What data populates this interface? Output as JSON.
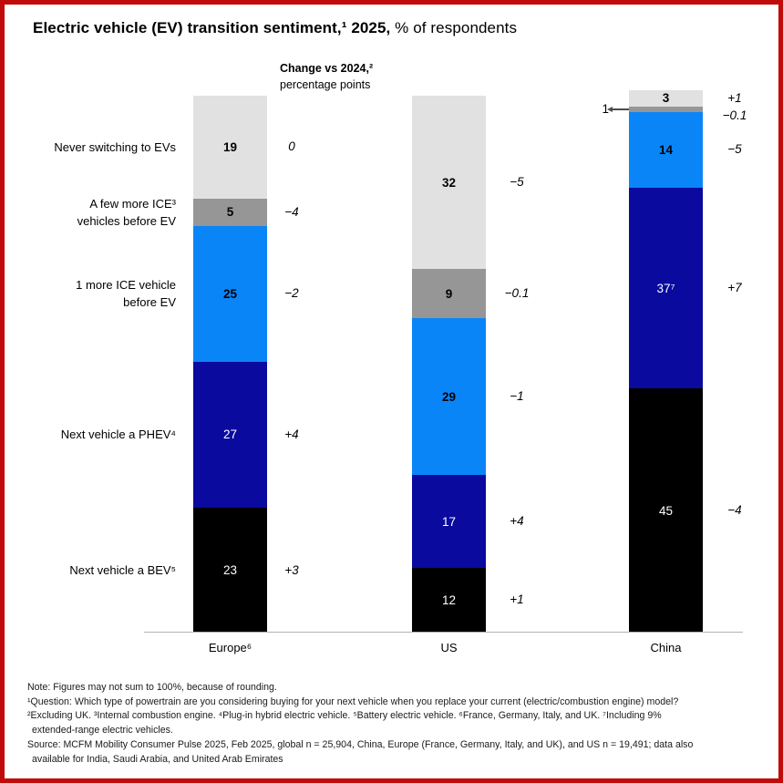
{
  "header": {
    "title_bold": "Electric vehicle (EV) transition sentiment,¹ 2025,",
    "title_regular": " % of respondents"
  },
  "change_header": {
    "bold": "Change vs 2024,²",
    "regular": "percentage points"
  },
  "chart_data": {
    "type": "bar",
    "stacked": true,
    "orientation": "vertical",
    "unit": "% of respondents",
    "legend_position": "left-category-labels",
    "grid": false,
    "ylim": [
      0,
      100
    ],
    "categories": [
      "Never switching to EVs",
      "A few more ICE³\nvehicles before EV",
      "1 more ICE vehicle\nbefore EV",
      "Next vehicle a PHEV⁴",
      "Next vehicle a BEV⁵"
    ],
    "segment_colors": [
      "#e1e1e1",
      "#969696",
      "#0a85f8",
      "#0a0a9f",
      "#000000"
    ],
    "segment_text_colors": [
      "#000000",
      "#000000",
      "#000000",
      "#ffffff",
      "#ffffff"
    ],
    "change_column_title": "Change vs 2024,² percentage points",
    "groups": [
      {
        "label": "Europe⁶",
        "values": [
          19,
          5,
          25,
          27,
          23
        ],
        "display_values": [
          "19",
          "5",
          "25",
          "27",
          "23"
        ],
        "changes": [
          "0",
          "−4",
          "−2",
          "+4",
          "+3"
        ]
      },
      {
        "label": "US",
        "values": [
          32,
          9,
          29,
          17,
          12
        ],
        "display_values": [
          "32",
          "9",
          "29",
          "17",
          "12"
        ],
        "changes": [
          "−5",
          "−0.1",
          "−1",
          "+4",
          "+1"
        ]
      },
      {
        "label": "China",
        "values": [
          3,
          1,
          14,
          37,
          45
        ],
        "display_values": [
          "3",
          "1",
          "14",
          "37⁷",
          "45"
        ],
        "changes": [
          "+1",
          "−0.1",
          "−5",
          "+7",
          "−4"
        ]
      }
    ]
  },
  "footnotes": {
    "lines": [
      "Note: Figures may not sum to 100%, because of rounding.",
      "¹Question: Which type of powertrain are you considering buying for your next vehicle when you replace your current (electric/combustion engine) model?",
      "²Excluding UK. ³Internal combustion engine. ⁴Plug-in hybrid electric vehicle. ⁵Battery electric vehicle. ⁶France, Germany, Italy, and UK. ⁷Including 9%",
      "extended-range electric vehicles.",
      "Source: MCFM Mobility Consumer Pulse 2025, Feb 2025, global n = 25,904, China, Europe (France, Germany, Italy, and UK), and US n = 19,491; data also",
      "available for India, Saudi Arabia, and United Arab Emirates"
    ]
  }
}
